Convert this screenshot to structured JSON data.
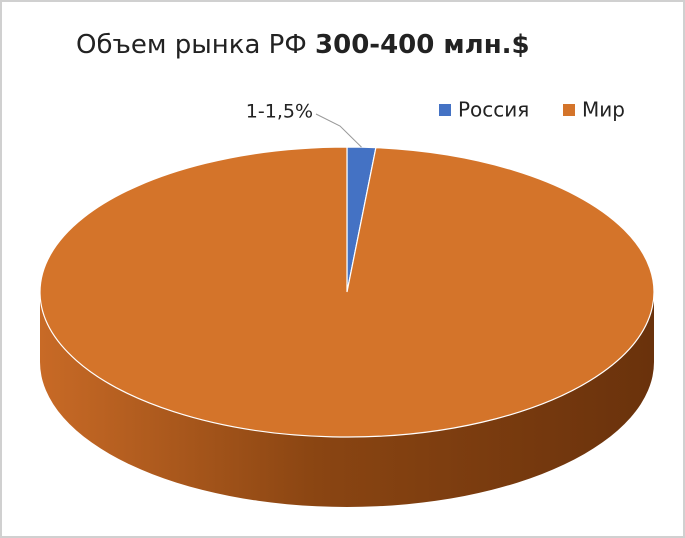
{
  "chart_data": {
    "type": "pie3d",
    "title": "Объем рынка РФ",
    "title_emphasis": "300-400 млн.$",
    "categories": [
      "Россия",
      "Мир"
    ],
    "values": [
      1.5,
      98.5
    ],
    "value_labels": [
      "1-1,5%",
      null
    ],
    "colors": [
      "#4472c4",
      "#d4742a"
    ]
  }
}
